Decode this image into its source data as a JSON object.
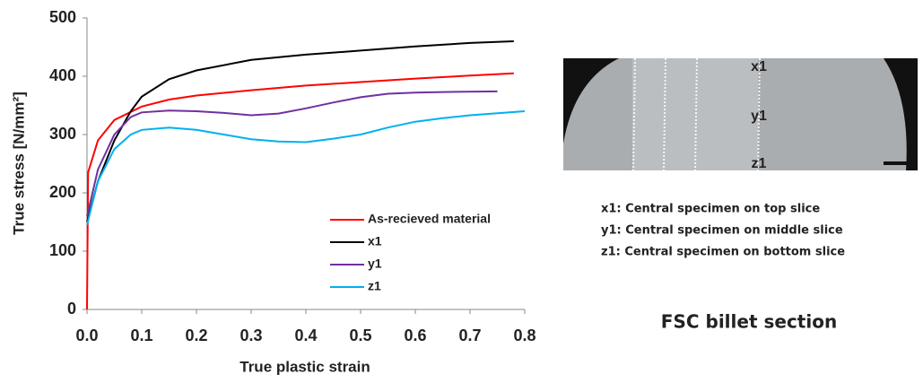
{
  "chart_data": {
    "type": "line",
    "x_label": "True plastic strain",
    "y_label": "True stress [N/mm²]",
    "xlim": [
      0,
      0.8
    ],
    "xticks": [
      {
        "value": 0,
        "label": "0.0"
      },
      0.1,
      0.2,
      0.3,
      0.4,
      0.5,
      0.6,
      0.7,
      0.8
    ],
    "ylim": [
      0,
      500
    ],
    "yticks": [
      0,
      100,
      200,
      300,
      400,
      500
    ],
    "grid": false,
    "legend": "lower right",
    "series": [
      {
        "name": "As-recieved material",
        "color": "#ff0000",
        "x": [
          0,
          0.002,
          0.02,
          0.05,
          0.1,
          0.15,
          0.2,
          0.3,
          0.4,
          0.5,
          0.6,
          0.7,
          0.78
        ],
        "values": [
          0,
          235,
          290,
          325,
          348,
          360,
          367,
          376,
          384,
          390,
          396,
          401,
          405
        ]
      },
      {
        "name": "x1",
        "color": "#000000",
        "x": [
          0,
          0.02,
          0.05,
          0.08,
          0.1,
          0.15,
          0.2,
          0.3,
          0.4,
          0.5,
          0.6,
          0.7,
          0.78
        ],
        "values": [
          150,
          220,
          290,
          340,
          365,
          395,
          410,
          428,
          437,
          444,
          451,
          457,
          460
        ]
      },
      {
        "name": "y1",
        "color": "#7030a0",
        "x": [
          0,
          0.02,
          0.05,
          0.08,
          0.1,
          0.15,
          0.2,
          0.25,
          0.3,
          0.35,
          0.4,
          0.45,
          0.5,
          0.55,
          0.6,
          0.65,
          0.75
        ],
        "values": [
          160,
          240,
          300,
          330,
          338,
          341,
          340,
          337,
          333,
          336,
          345,
          355,
          364,
          370,
          372,
          373,
          374
        ]
      },
      {
        "name": "z1",
        "color": "#00b0f0",
        "x": [
          0,
          0.02,
          0.05,
          0.08,
          0.1,
          0.15,
          0.2,
          0.25,
          0.3,
          0.35,
          0.4,
          0.45,
          0.5,
          0.55,
          0.6,
          0.65,
          0.7,
          0.8
        ],
        "values": [
          145,
          220,
          275,
          300,
          308,
          312,
          308,
          300,
          292,
          288,
          287,
          293,
          300,
          312,
          322,
          328,
          333,
          340
        ]
      }
    ]
  },
  "photo": {
    "labels": [
      "x1",
      "y1",
      "z1"
    ]
  },
  "captions": [
    "x1: Central specimen on top slice",
    "y1: Central specimen on middle slice",
    "z1: Central specimen on bottom slice"
  ],
  "section_title": "FSC billet section"
}
